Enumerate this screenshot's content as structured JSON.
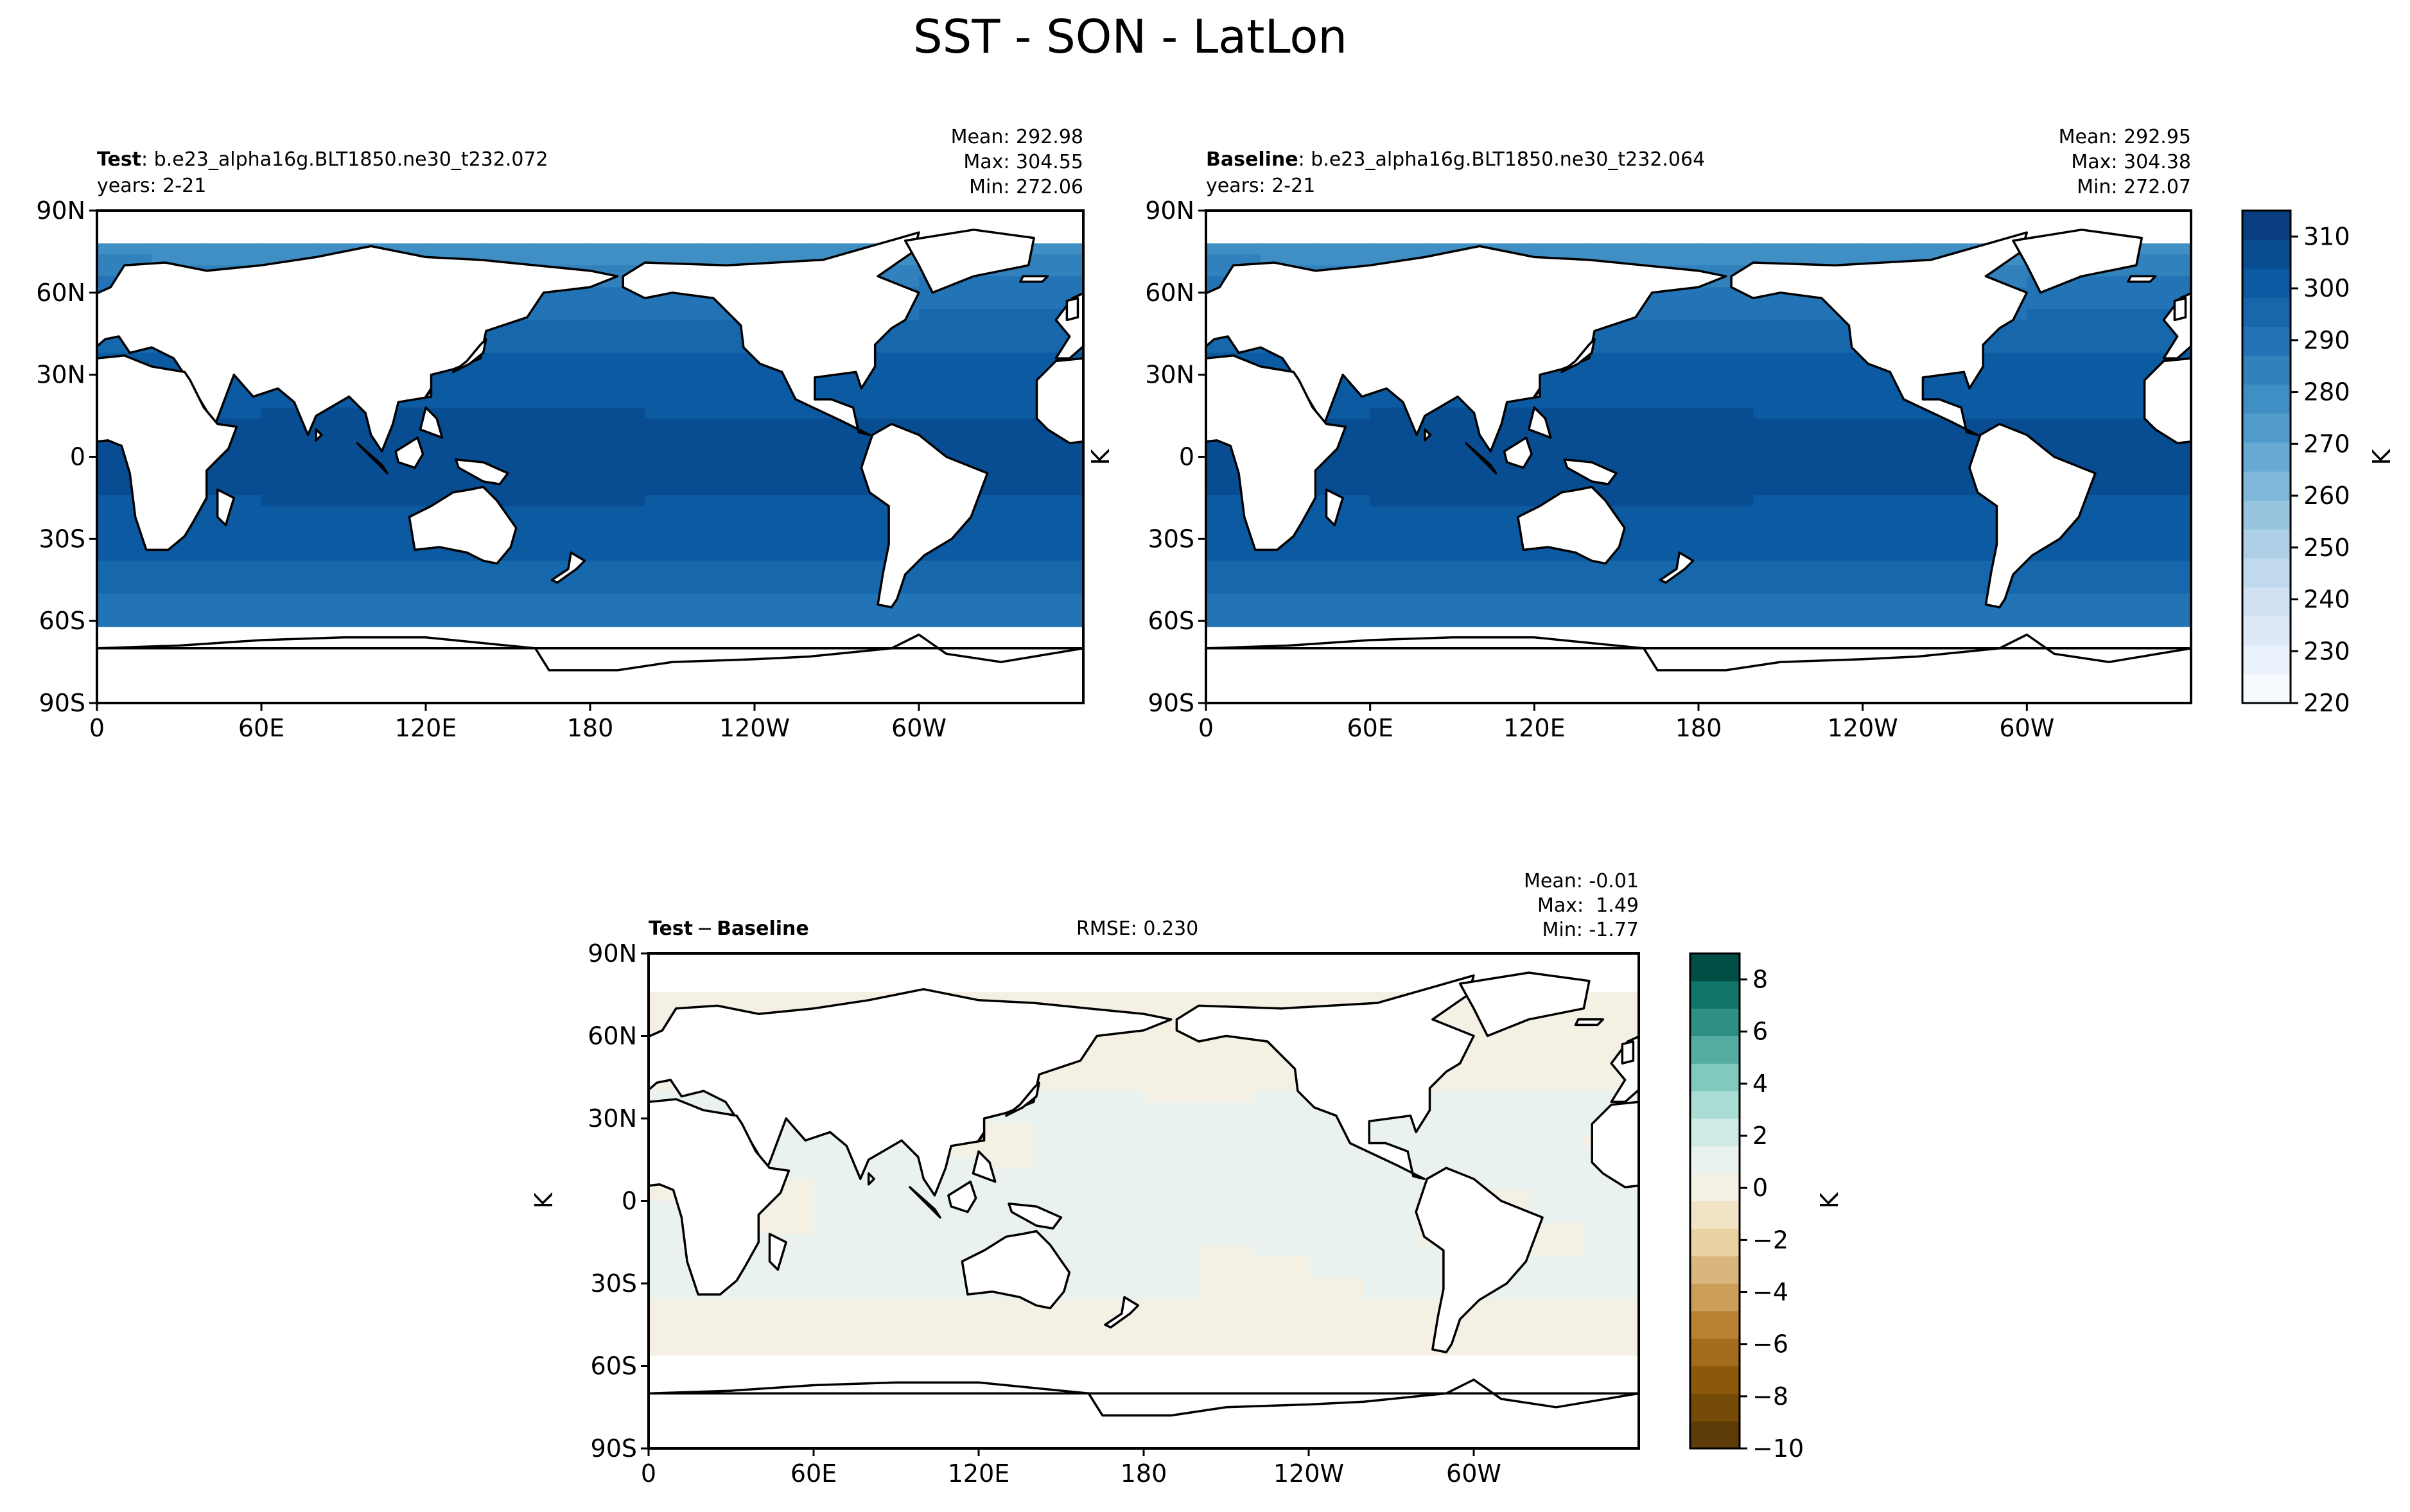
{
  "figure": {
    "title": "SST - SON - LatLon"
  },
  "panels": [
    {
      "id": "test",
      "label_bold": "Test",
      "label_rest": ": b.e23_alpha16g.BLT1850.ne30_t232.072",
      "years": "years: 2-21",
      "stats": {
        "mean": "Mean: 292.98",
        "max": "Max: 304.55",
        "min": "Min: 272.06"
      },
      "ylabel": ""
    },
    {
      "id": "baseline",
      "label_bold": "Baseline",
      "label_rest": ": b.e23_alpha16g.BLT1850.ne30_t232.064",
      "years": "years: 2-21",
      "stats": {
        "mean": "Mean: 292.95",
        "max": "Max: 304.38",
        "min": "Min: 272.07"
      },
      "ylabel": "K"
    },
    {
      "id": "diff",
      "label_bold": "Test",
      "label_minus": "−",
      "label_bold2": "Baseline",
      "rmse": "RMSE: 0.230",
      "stats": {
        "mean": "Mean: -0.01",
        "max": "Max:  1.49",
        "min": "Min: -1.77"
      },
      "ylabel": "K"
    }
  ],
  "axes": {
    "lat_ticks": [
      "90N",
      "60N",
      "30N",
      "0",
      "30S",
      "60S",
      "90S"
    ],
    "lon_ticks": [
      "0",
      "60E",
      "120E",
      "180",
      "120W",
      "60W"
    ]
  },
  "colorbars": {
    "sst": {
      "label": "K",
      "tick_labels": [
        "310",
        "300",
        "290",
        "280",
        "270",
        "260",
        "250",
        "240",
        "230",
        "220"
      ],
      "range": [
        220,
        315
      ],
      "colors": [
        "#f7fbff",
        "#eaf2fb",
        "#dde9f6",
        "#d0e2f2",
        "#c1d9ed",
        "#add0e6",
        "#97c4df",
        "#7fb7d9",
        "#66a9d2",
        "#519ccb",
        "#3f8fc5",
        "#3181bd",
        "#2374b6",
        "#1767ad",
        "#0c5aa1",
        "#084d92",
        "#083e7f"
      ]
    },
    "diff": {
      "label": "K",
      "tick_labels": [
        "8",
        "6",
        "4",
        "2",
        "0",
        "−2",
        "−4",
        "−6",
        "−8",
        "−10"
      ],
      "range": [
        -10,
        9
      ],
      "colors": [
        "#5e3c07",
        "#754b08",
        "#8c590b",
        "#a36b1c",
        "#b98233",
        "#cd9d5a",
        "#d9b67e",
        "#e8d2a2",
        "#f1e4c6",
        "#f5f0e4",
        "#eaf2f0",
        "#cdeae4",
        "#a9dcd3",
        "#80c9bd",
        "#55ada2",
        "#2e9085",
        "#11756a",
        "#014e45"
      ]
    }
  },
  "colors": {
    "land": "#ffffff",
    "coast": "#000000",
    "ice_free_ocean_mean": "#1258a6"
  }
}
